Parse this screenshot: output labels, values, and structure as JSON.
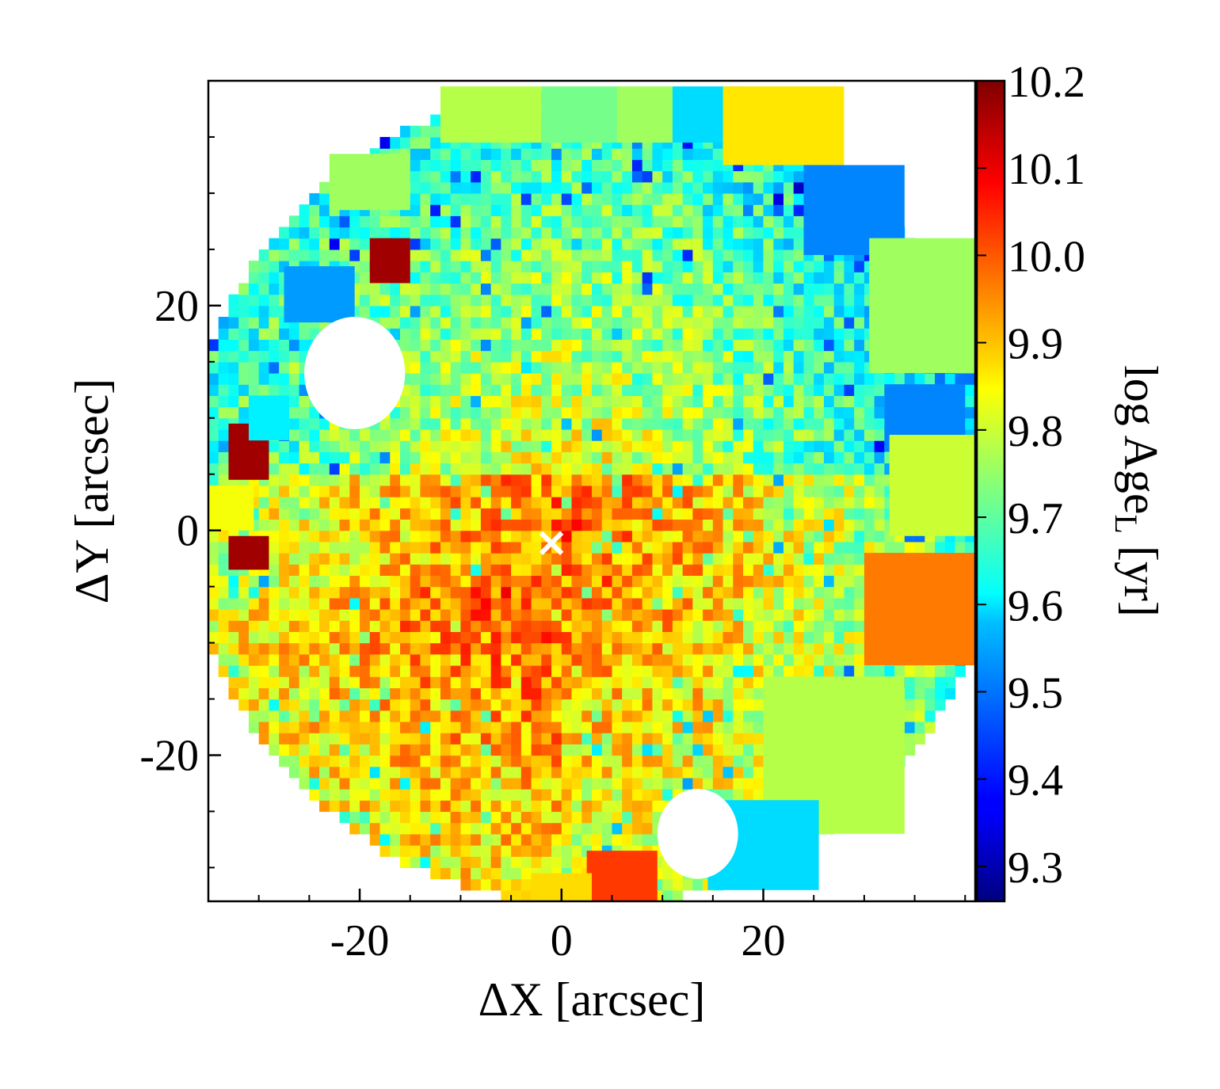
{
  "chart_data": {
    "type": "heatmap",
    "title": "",
    "xlabel": "ΔX [arcsec]",
    "ylabel": "ΔY [arcsec]",
    "xlim": [
      -35,
      41
    ],
    "ylim": [
      -33,
      40
    ],
    "x_ticks": [
      {
        "value": -20,
        "label": "-20"
      },
      {
        "value": 0,
        "label": "0"
      },
      {
        "value": 20,
        "label": "20"
      }
    ],
    "y_ticks": [
      {
        "value": 20,
        "label": "20"
      },
      {
        "value": 0,
        "label": "0"
      },
      {
        "value": -20,
        "label": "-20"
      }
    ],
    "colorbar": {
      "label_main": "log Age",
      "label_sub": "L",
      "label_unit": " [yr]",
      "range": [
        9.26,
        10.2
      ],
      "ticks": [
        {
          "value": 10.2,
          "label": "10.2"
        },
        {
          "value": 10.1,
          "label": "10.1"
        },
        {
          "value": 10.0,
          "label": "10.0"
        },
        {
          "value": 9.9,
          "label": "9.9"
        },
        {
          "value": 9.8,
          "label": "9.8"
        },
        {
          "value": 9.7,
          "label": "9.7"
        },
        {
          "value": 9.6,
          "label": "9.6"
        },
        {
          "value": 9.5,
          "label": "9.5"
        },
        {
          "value": 9.4,
          "label": "9.4"
        },
        {
          "value": 9.3,
          "label": "9.3"
        }
      ],
      "colormap": "jet"
    },
    "center_marker": {
      "x": -1,
      "y": -1,
      "symbol": "×",
      "color": "#ffffff"
    },
    "masked_regions": [
      {
        "x": -20.5,
        "y": 14,
        "r": 5
      },
      {
        "x": 13.5,
        "y": -27,
        "r": 4
      }
    ],
    "large_bins": [
      {
        "x": -7,
        "y": 37,
        "w": 10,
        "h": 5,
        "value": 9.78
      },
      {
        "x": 2,
        "y": 37,
        "w": 8,
        "h": 5,
        "value": 9.72
      },
      {
        "x": 9,
        "y": 37,
        "w": 7,
        "h": 5,
        "value": 9.76
      },
      {
        "x": 14.5,
        "y": 37,
        "w": 7,
        "h": 5,
        "value": 9.58
      },
      {
        "x": 22,
        "y": 36,
        "w": 12,
        "h": 7,
        "value": 9.87
      },
      {
        "x": 29,
        "y": 28.5,
        "w": 10,
        "h": 8,
        "value": 9.5
      },
      {
        "x": 36,
        "y": 20,
        "w": 11,
        "h": 12,
        "value": 9.76
      },
      {
        "x": 36,
        "y": 10,
        "w": 8,
        "h": 6,
        "value": 9.5
      },
      {
        "x": 37,
        "y": 4,
        "w": 9,
        "h": 9,
        "value": 9.8
      },
      {
        "x": 36,
        "y": -7,
        "w": 12,
        "h": 10,
        "value": 9.97
      },
      {
        "x": 27,
        "y": -20,
        "w": 14,
        "h": 14,
        "value": 9.78
      },
      {
        "x": 20,
        "y": -28,
        "w": 11,
        "h": 8,
        "value": 9.58
      },
      {
        "x": 6,
        "y": -31,
        "w": 7,
        "h": 5,
        "value": 10.03
      },
      {
        "x": 0,
        "y": -32,
        "w": 6,
        "h": 3,
        "value": 9.88
      },
      {
        "x": -24,
        "y": 21,
        "w": 7,
        "h": 5,
        "value": 9.52
      },
      {
        "x": -17,
        "y": 24,
        "w": 4,
        "h": 4,
        "value": 10.17
      },
      {
        "x": -31,
        "y": 7,
        "w": 4,
        "h": 5,
        "value": 10.17
      },
      {
        "x": -31,
        "y": -2,
        "w": 4,
        "h": 3,
        "value": 10.17
      },
      {
        "x": -29,
        "y": 10,
        "w": 4,
        "h": 4,
        "value": 9.6
      },
      {
        "x": -33,
        "y": 2,
        "w": 5,
        "h": 4,
        "value": 9.84
      },
      {
        "x": -19,
        "y": 31,
        "w": 8,
        "h": 5,
        "value": 9.76
      }
    ]
  }
}
